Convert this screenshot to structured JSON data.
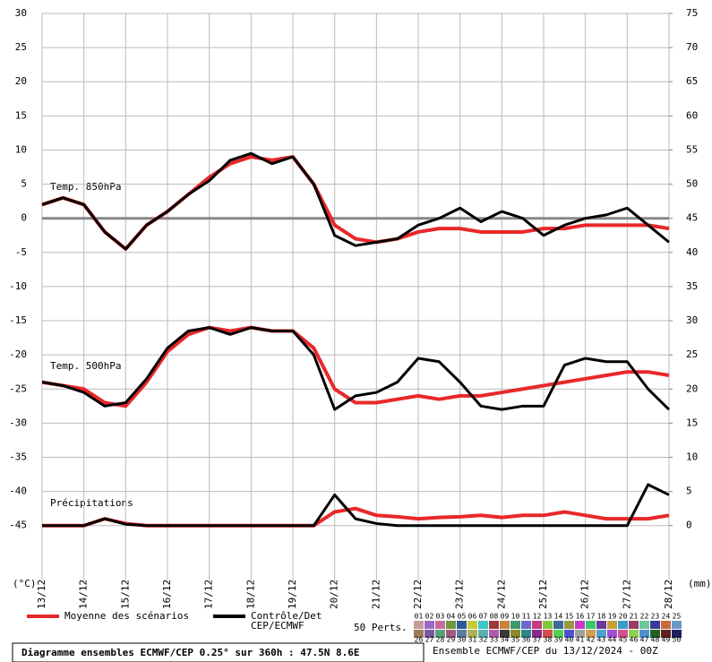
{
  "chart_data": {
    "type": "line",
    "y_label": "(°C)",
    "y2_label": "(mm)",
    "annotations": [
      "Temp. 850hPa",
      "Temp. 500hPa",
      "Précipitations"
    ],
    "x": [
      "13/12",
      null,
      "14/12",
      null,
      "15/12",
      null,
      "16/12",
      null,
      "17/12",
      null,
      "18/12",
      null,
      "19/12",
      null,
      "20/12",
      null,
      "21/12",
      null,
      "22/12",
      null,
      "23/12",
      null,
      "24/12",
      null,
      "25/12",
      null,
      "26/12",
      null,
      "27/12",
      null,
      "28/12"
    ],
    "ylim": [
      -53.3,
      30
    ],
    "yticks": [
      30,
      25,
      20,
      15,
      10,
      5,
      0,
      -5,
      -10,
      -15,
      -20,
      -25,
      -30,
      -35,
      -40,
      -45
    ],
    "y2lim": [
      -8.3,
      75
    ],
    "y2ticks": [
      75,
      70,
      65,
      60,
      55,
      50,
      45,
      40,
      35,
      30,
      25,
      20,
      15,
      10,
      5,
      0
    ],
    "grid": true,
    "series": [
      {
        "name": [
          "Moyenne des scénarios"
        ],
        "color": "#e8282a",
        "t850": [
          2,
          3,
          2,
          -2,
          -4.5,
          -1,
          1,
          3.5,
          6,
          8,
          9,
          8.5,
          9,
          5,
          -1,
          -3,
          -3.5,
          -3,
          -2,
          -1.5,
          -1.5,
          -2,
          -2,
          -2,
          -1.5,
          -1.5,
          -1,
          -1,
          -1,
          -1,
          -1.5
        ],
        "t500": [
          -24,
          -24.5,
          -25,
          -27,
          -27.5,
          -24,
          -19.5,
          -17,
          -16,
          -16.5,
          -16,
          -16.5,
          -16.5,
          -19,
          -25,
          -27,
          -27,
          -26.5,
          -26,
          -26.5,
          -26,
          -26,
          -25.5,
          -25,
          -24.5,
          -24,
          -23.5,
          -23,
          -22.5,
          -22.5,
          -23
        ],
        "precip": [
          0,
          0,
          0,
          1,
          0.3,
          0,
          0,
          0,
          0,
          0,
          0,
          0,
          0,
          0,
          2,
          2.5,
          1.5,
          1.3,
          1,
          1.2,
          1.3,
          1.5,
          1.2,
          1.5,
          1.5,
          2,
          1.5,
          1,
          1,
          1,
          1.5
        ]
      },
      {
        "name": [
          "Contrôle/Det",
          "CEP/ECMWF"
        ],
        "color": "#000000",
        "t850": [
          2,
          3,
          2,
          -2,
          -4.5,
          -1,
          1,
          3.5,
          5.5,
          8.5,
          9.5,
          8,
          9,
          5,
          -2.5,
          -4,
          -3.5,
          -3,
          -1,
          0,
          1.5,
          -0.5,
          1,
          0,
          -2.5,
          -1,
          0,
          0.5,
          1.5,
          -1,
          -3.5
        ],
        "t500": [
          -24,
          -24.5,
          -25.5,
          -27.5,
          -27,
          -23.5,
          -19,
          -16.5,
          -16,
          -17,
          -16,
          -16.5,
          -16.5,
          -20,
          -28,
          -26,
          -25.5,
          -24,
          -20.5,
          -21,
          -24,
          -27.5,
          -28,
          -27.5,
          -27.5,
          -21.5,
          -20.5,
          -21,
          -21,
          -25,
          -28
        ],
        "precip": [
          0,
          0,
          0,
          1,
          0.2,
          0,
          0,
          0,
          0,
          0,
          0,
          0,
          0,
          0,
          4.5,
          1,
          0.3,
          0,
          0,
          0,
          0,
          0,
          0,
          0,
          0,
          0,
          0,
          0,
          0,
          6,
          4.5
        ]
      }
    ],
    "members": {
      "label": "50 Perts.",
      "ids": [
        "01",
        "02",
        "03",
        "04",
        "05",
        "06",
        "07",
        "08",
        "09",
        "10",
        "11",
        "12",
        "13",
        "14",
        "15",
        "16",
        "17",
        "18",
        "19",
        "20",
        "21",
        "22",
        "23",
        "24",
        "25",
        "26",
        "27",
        "28",
        "29",
        "30",
        "31",
        "32",
        "33",
        "34",
        "35",
        "36",
        "37",
        "38",
        "39",
        "40",
        "41",
        "42",
        "43",
        "44",
        "45",
        "46",
        "47",
        "48",
        "49",
        "50"
      ],
      "colors": [
        "#c89a9a",
        "#9a6ac8",
        "#c86aa0",
        "#6a9a3a",
        "#2a5a9a",
        "#c8c83a",
        "#3ac8c8",
        "#9a3a3a",
        "#c8823a",
        "#3a9a6a",
        "#6a6ac8",
        "#c83a82",
        "#82c83a",
        "#3a6a9a",
        "#9a9a3a",
        "#c83ac8",
        "#3ac86a",
        "#6a3a9a",
        "#c8a03a",
        "#3a9ac8",
        "#9a3a6a",
        "#6ac89a",
        "#3a3a9a",
        "#c86a3a",
        "#6a9ac8",
        "#a07a5a",
        "#7a5aa0",
        "#5aa07a",
        "#a05a7a",
        "#5a7aa0",
        "#b0b05a",
        "#5ab0b0",
        "#b05ab0",
        "#3a3a3a",
        "#8a8a2a",
        "#2a8a8a",
        "#8a2a8a",
        "#d05050",
        "#50d050",
        "#5050d0",
        "#a0a0a0",
        "#d0a050",
        "#50a0d0",
        "#a050d0",
        "#d05090",
        "#90d050",
        "#5090d0",
        "#206020",
        "#602020",
        "#202060"
      ]
    },
    "footer": {
      "title": "Diagramme ensembles ECMWF/CEP 0.25° sur 360h : 47.5N 8.6E",
      "run": "Ensemble ECMWF/CEP du 13/12/2024 - 00Z"
    }
  }
}
